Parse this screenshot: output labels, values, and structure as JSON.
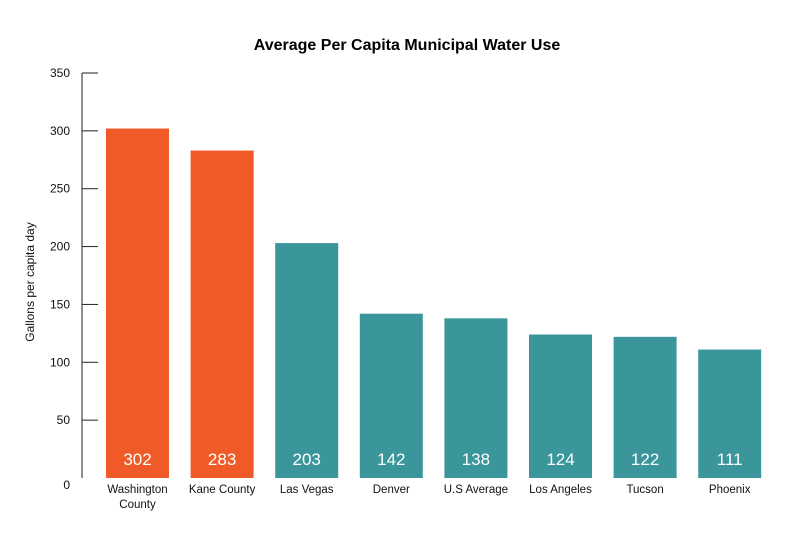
{
  "chart_data": {
    "type": "bar",
    "title": "Average Per Capita Municipal Water Use",
    "xlabel": "",
    "ylabel": "Gallons per capita day",
    "ylim": [
      0,
      350
    ],
    "yticks": [
      0,
      50,
      100,
      150,
      200,
      250,
      300,
      350
    ],
    "grid": false,
    "categories": [
      [
        "Washington",
        "County"
      ],
      [
        "Kane County"
      ],
      [
        "Las Vegas"
      ],
      [
        "Denver"
      ],
      [
        "U.S Average"
      ],
      [
        "Los Angeles"
      ],
      [
        "Tucson"
      ],
      [
        "Phoenix"
      ]
    ],
    "values": [
      302,
      283,
      203,
      142,
      138,
      124,
      122,
      111
    ],
    "colors": [
      "#F05A28",
      "#F05A28",
      "#3A969A",
      "#3A969A",
      "#3A969A",
      "#3A969A",
      "#3A969A",
      "#3A969A"
    ],
    "data_labels": [
      "302",
      "283",
      "203",
      "142",
      "138",
      "124",
      "122",
      "111"
    ]
  }
}
